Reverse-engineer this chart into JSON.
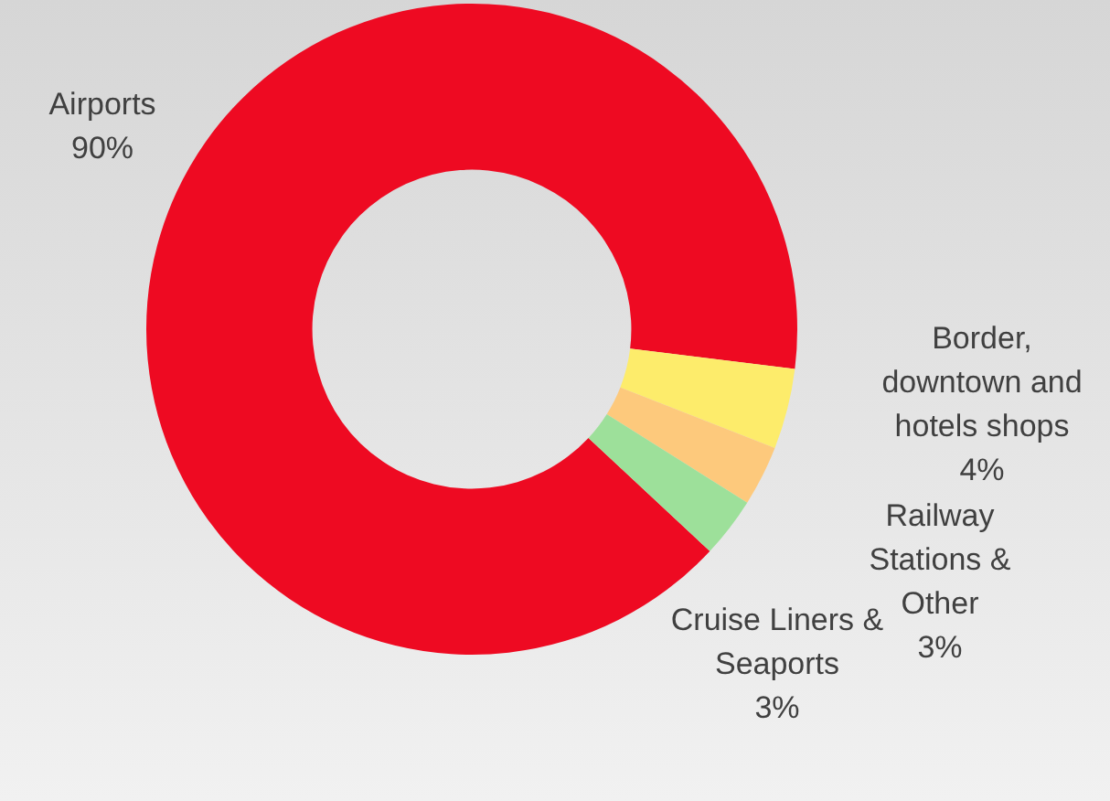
{
  "chart_data": {
    "type": "donut",
    "categories": [
      "Airports",
      "Border, downtown and hotels shops",
      "Railway Stations & Other",
      "Cruise Liners & Seaports"
    ],
    "values": [
      90,
      4,
      3,
      3
    ],
    "value_labels": [
      "90%",
      "4%",
      "3%",
      "3%"
    ],
    "colors": [
      "#ee0a22",
      "#fdec6b",
      "#fdc97c",
      "#9de09a"
    ],
    "legend": false
  }
}
